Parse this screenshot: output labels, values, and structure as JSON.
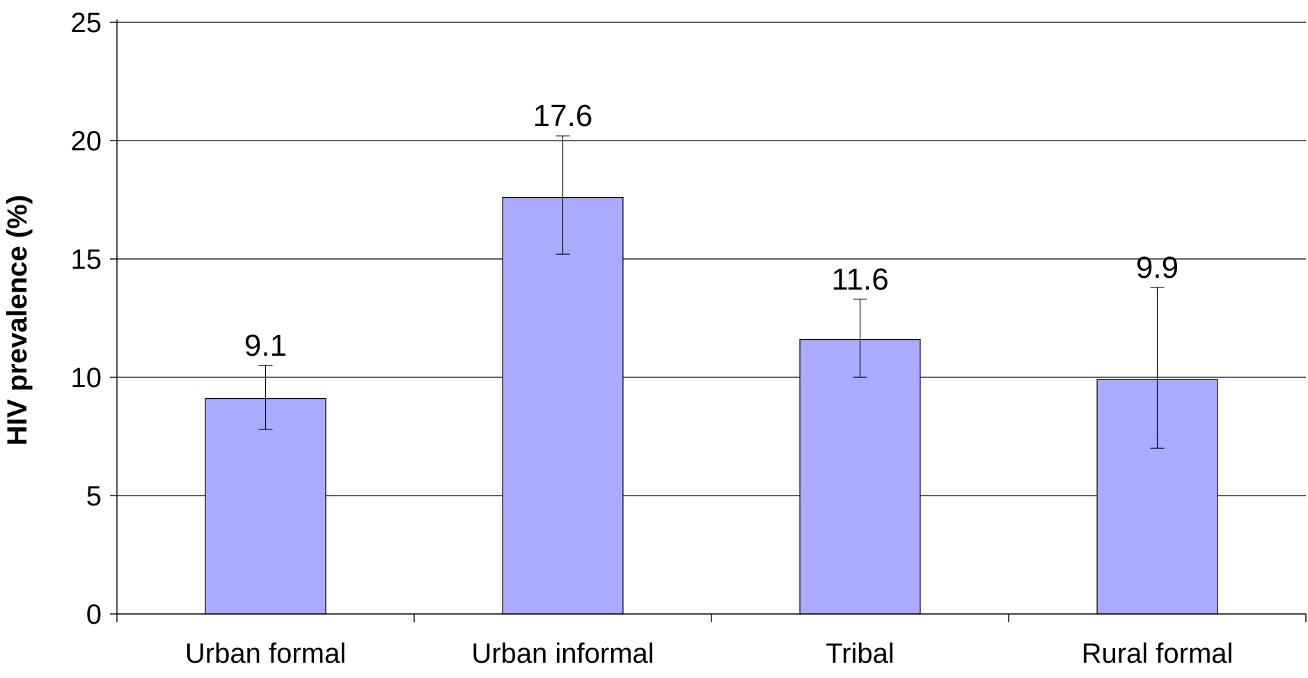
{
  "chart_data": {
    "type": "bar",
    "categories": [
      "Urban formal",
      "Urban informal",
      "Tribal",
      "Rural formal"
    ],
    "values": [
      9.1,
      17.6,
      11.6,
      9.9
    ],
    "data_labels": [
      "9.1",
      "17.6",
      "11.6",
      "9.9"
    ],
    "error_bars": [
      {
        "low": 7.8,
        "high": 10.5
      },
      {
        "low": 15.2,
        "high": 20.2
      },
      {
        "low": 10.0,
        "high": 13.3
      },
      {
        "low": 7.0,
        "high": 13.8
      }
    ],
    "title": "",
    "xlabel": "",
    "ylabel": "HIV prevalence (%)",
    "ylim": [
      0,
      25
    ],
    "yticks": [
      0,
      5,
      10,
      15,
      20,
      25
    ],
    "ytick_labels": [
      "0",
      "5",
      "10",
      "15",
      "20",
      "25"
    ],
    "grid": true,
    "legend": "none",
    "colors": {
      "bar_fill": "#aaaaff",
      "bar_stroke": "#000000",
      "grid": "#000000",
      "background": "#ffffff"
    }
  }
}
